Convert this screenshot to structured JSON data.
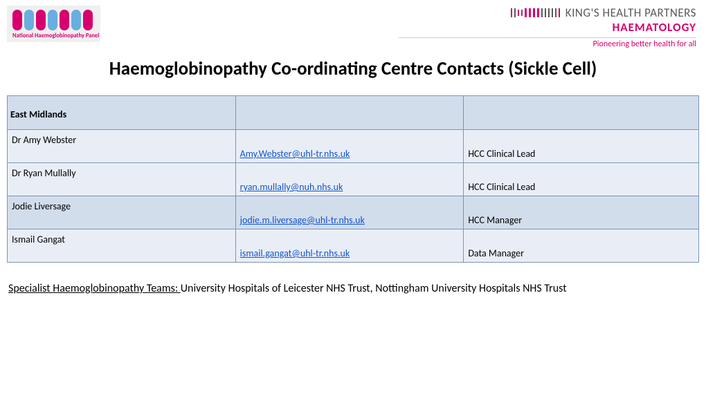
{
  "logo_left": {
    "text": "National Haemoglobinopathy Panel",
    "pill_colors": [
      "#d6006e",
      "#6aaee0",
      "#d6006e",
      "#6aaee0",
      "#d6006e",
      "#6aaee0",
      "#d6006e"
    ]
  },
  "logo_right": {
    "title": "KING'S HEALTH PARTNERS",
    "subtitle": "HAEMATOLOGY",
    "tagline": "Pioneering better health for all",
    "bar_colors": [
      "#d6006e",
      "#5a5a5a",
      "#d6006e",
      "#5a5a5a",
      "#d6006e",
      "#d6006e",
      "#d6006e",
      "#d6006e",
      "#5a5a5a",
      "#5a5a5a",
      "#5a5a5a",
      "#5a5a5a",
      "#5a5a5a",
      "#d6006e"
    ]
  },
  "page_title": "Haemoglobinopathy Co-ordinating Centre Contacts (Sickle Cell)",
  "table": {
    "region": "East Midlands",
    "row_colors": {
      "a": "#d2ddec",
      "b": "#e9eef6"
    },
    "border_color": "#7a94b8",
    "link_color": "#1155cc",
    "rows": [
      {
        "name": "Dr Amy Webster",
        "email": "Amy.Webster@uhl-tr.nhs.uk",
        "role": "HCC Clinical Lead",
        "shade": "b"
      },
      {
        "name": "Dr Ryan Mullally",
        "email": "ryan.mullally@nuh.nhs.uk",
        "role": "HCC Clinical Lead",
        "shade": "b"
      },
      {
        "name": "Jodie Liversage",
        "email": "jodie.m.liversage@uhl-tr.nhs.uk",
        "role": "HCC Manager",
        "shade": "a"
      },
      {
        "name": "Ismail Gangat",
        "email": "ismail.gangat@uhl-tr.nhs.uk",
        "role": "Data Manager",
        "shade": "b"
      }
    ]
  },
  "footer": {
    "lead": "Specialist Haemoglobinopathy Teams: ",
    "body": "University Hospitals of Leicester NHS Trust, Nottingham University Hospitals NHS Trust"
  }
}
